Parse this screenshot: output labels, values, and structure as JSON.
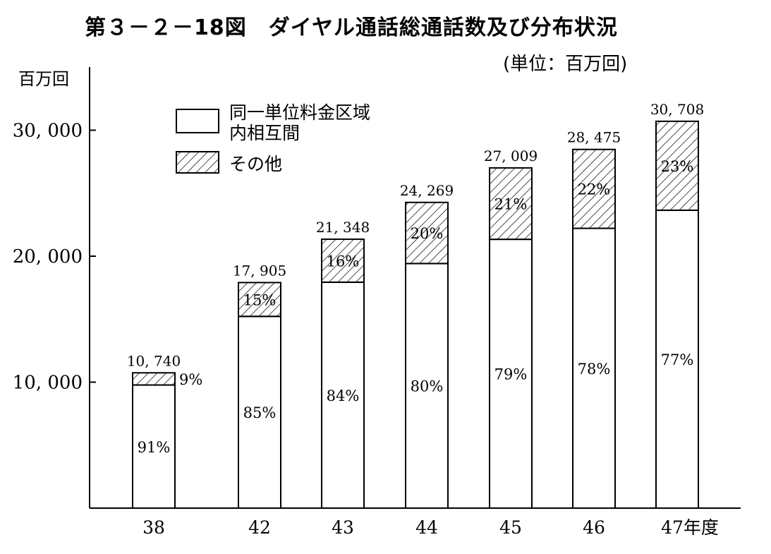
{
  "title": "第３－２－18図　ダイヤル通話総通話数及び分布状況",
  "unit_label": "(単位：百万回)",
  "colors": {
    "ink": "#000000",
    "background": "#ffffff"
  },
  "chart_data": {
    "type": "bar",
    "stacked": true,
    "title": "第３－２－18図　ダイヤル通話総通話数及び分布状況",
    "ylabel": "百万回",
    "xlabel": "年度",
    "ylim": [
      0,
      33000
    ],
    "y_ticks": [
      10000,
      20000,
      30000
    ],
    "y_tick_labels": [
      "10, 000",
      "20, 000",
      "30, 000"
    ],
    "grid": false,
    "legend_position": "top-left",
    "categories": [
      "38",
      "42",
      "43",
      "44",
      "45",
      "46",
      "47"
    ],
    "category_labels": [
      "38",
      "42",
      "43",
      "44",
      "45",
      "46",
      "47年度"
    ],
    "totals": [
      10740,
      17905,
      21348,
      24269,
      27009,
      28475,
      30708
    ],
    "total_labels": [
      "10, 740",
      "17, 905",
      "21, 348",
      "24, 269",
      "27, 009",
      "28, 475",
      "30, 708"
    ],
    "series": [
      {
        "name": "同一単位料金区域内相互間",
        "pattern": "white",
        "percent": [
          91,
          85,
          84,
          80,
          79,
          78,
          77
        ],
        "percent_labels": [
          "91%",
          "85%",
          "84%",
          "80%",
          "79%",
          "78%",
          "77%"
        ]
      },
      {
        "name": "その他",
        "pattern": "hatched",
        "percent": [
          9,
          15,
          16,
          20,
          21,
          22,
          23
        ],
        "percent_labels": [
          "9%",
          "15%",
          "16%",
          "20%",
          "21%",
          "22%",
          "23%"
        ]
      }
    ],
    "legend": [
      {
        "line1": "同一単位料金区域",
        "line2": "内相互間",
        "pattern": "white"
      },
      {
        "line1": "その他",
        "line2": "",
        "pattern": "hatched"
      }
    ]
  }
}
